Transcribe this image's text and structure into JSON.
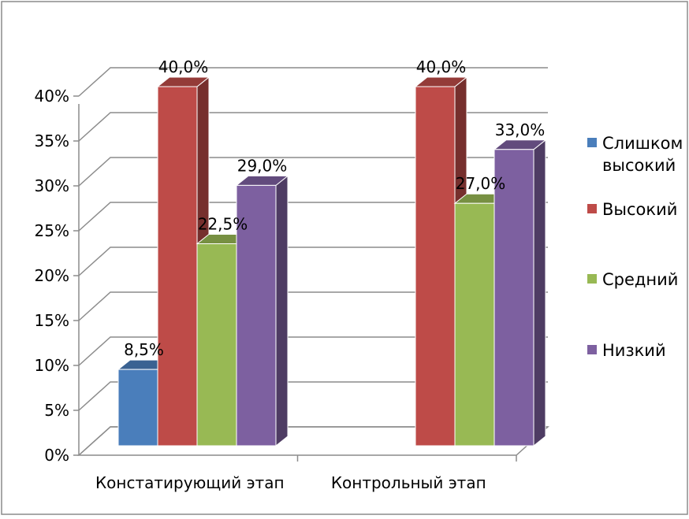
{
  "chart_data": {
    "type": "bar",
    "title": "",
    "xlabel": "",
    "ylabel": "",
    "ylim": [
      0,
      40
    ],
    "y_ticks": [
      "0%",
      "5%",
      "10%",
      "15%",
      "20%",
      "25%",
      "30%",
      "35%",
      "40%"
    ],
    "categories": [
      "Констатирующий этап",
      "Контрольный этап"
    ],
    "series": [
      {
        "name": "Слишком высокий",
        "legend_lines": [
          "Слишком",
          "высокий"
        ],
        "color": "#4a7ebb",
        "values": [
          8.5,
          null
        ],
        "labels": [
          "8,5%",
          ""
        ]
      },
      {
        "name": "Высокий",
        "legend_lines": [
          "Высокий"
        ],
        "color": "#be4b48",
        "values": [
          40.0,
          40.0
        ],
        "labels": [
          "40,0%",
          "40,0%"
        ]
      },
      {
        "name": "Средний",
        "legend_lines": [
          "Средний"
        ],
        "color": "#98b954",
        "values": [
          22.5,
          27.0
        ],
        "labels": [
          "22,5%",
          "27,0%"
        ]
      },
      {
        "name": "Низкий",
        "legend_lines": [
          "Низкий"
        ],
        "color": "#7d60a0",
        "values": [
          29.0,
          33.0
        ],
        "labels": [
          "29,0%",
          "33,0%"
        ]
      }
    ],
    "grid": true,
    "legend_position": "right",
    "style": "3d-clustered-column"
  }
}
